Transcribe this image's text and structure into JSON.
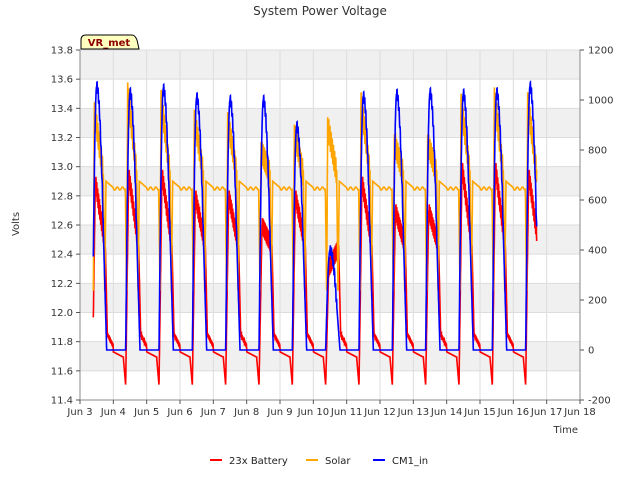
{
  "chart_data": {
    "type": "line",
    "title": "System Power Voltage",
    "xlabel": "Time",
    "ylabel": "Volts",
    "badge": "VR_met",
    "x_ticks": [
      "Jun 3",
      "Jun 4",
      "Jun 5",
      "Jun 6",
      "Jun 7",
      "Jun 8",
      "Jun 9",
      "Jun 10",
      "Jun 11",
      "Jun 12",
      "Jun 13",
      "Jun 14",
      "Jun 15",
      "Jun 16",
      "Jun 17",
      "Jun 18"
    ],
    "xlim": [
      3,
      18
    ],
    "ylim_left": [
      11.4,
      13.8
    ],
    "yticks_left": [
      "11.4",
      "11.6",
      "11.8",
      "12.0",
      "12.2",
      "12.4",
      "12.6",
      "12.8",
      "13.0",
      "13.2",
      "13.4",
      "13.6",
      "13.8"
    ],
    "ylim_right": [
      -200,
      1200
    ],
    "yticks_right": [
      "-200",
      "0",
      "200",
      "400",
      "600",
      "800",
      "1000",
      "1200"
    ],
    "days": [
      {
        "day": 3,
        "batt_peak": 12.9,
        "solar_peak": 960,
        "cm1_peak": 1055
      },
      {
        "day": 4,
        "batt_peak": 12.95,
        "solar_peak": 1040,
        "cm1_peak": 1030
      },
      {
        "day": 5,
        "batt_peak": 12.95,
        "solar_peak": 1010,
        "cm1_peak": 1045
      },
      {
        "day": 6,
        "batt_peak": 12.8,
        "solar_peak": 930,
        "cm1_peak": 1010
      },
      {
        "day": 7,
        "batt_peak": 12.8,
        "solar_peak": 920,
        "cm1_peak": 1000
      },
      {
        "day": 8,
        "batt_peak": 12.6,
        "solar_peak": 800,
        "cm1_peak": 1000
      },
      {
        "day": 9,
        "batt_peak": 12.8,
        "solar_peak": 870,
        "cm1_peak": 895
      },
      {
        "day": 10,
        "batt_peak": 12.3,
        "solar_peak": 900,
        "cm1_peak": 400
      },
      {
        "day": 11,
        "batt_peak": 12.9,
        "solar_peak": 1000,
        "cm1_peak": 1015
      },
      {
        "day": 12,
        "batt_peak": 12.7,
        "solar_peak": 830,
        "cm1_peak": 1025
      },
      {
        "day": 13,
        "batt_peak": 12.7,
        "solar_peak": 830,
        "cm1_peak": 1030
      },
      {
        "day": 14,
        "batt_peak": 13.0,
        "solar_peak": 995,
        "cm1_peak": 1025
      },
      {
        "day": 15,
        "batt_peak": 13.0,
        "solar_peak": 1020,
        "cm1_peak": 1030
      },
      {
        "day": 16,
        "batt_peak": 12.95,
        "solar_peak": 1000,
        "cm1_peak": 1055
      }
    ],
    "series": [
      {
        "name": "23x Battery",
        "axis": "left",
        "color": "#ff0000",
        "baseline": 11.75,
        "low": 11.5
      },
      {
        "name": "Solar",
        "axis": "left",
        "color": "#ffa500",
        "baseline": 12.85,
        "low": 12.15
      },
      {
        "name": "CM1_in",
        "axis": "right",
        "color": "#0000ff",
        "baseline": 0,
        "low": 0
      }
    ],
    "time_range": [
      3.4,
      16.7
    ],
    "grid": true,
    "legend_position": "bottom-center"
  }
}
